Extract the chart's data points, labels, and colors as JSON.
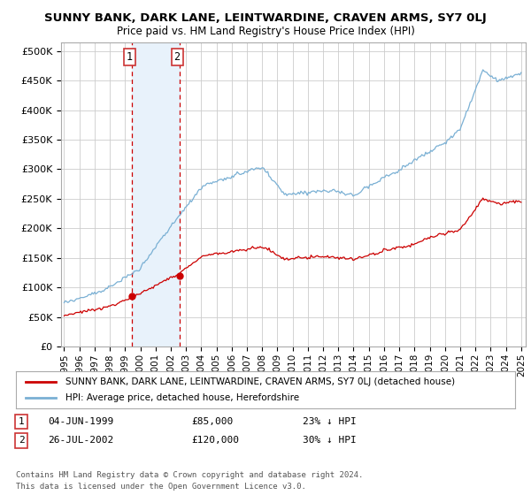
{
  "title": "SUNNY BANK, DARK LANE, LEINTWARDINE, CRAVEN ARMS, SY7 0LJ",
  "subtitle": "Price paid vs. HM Land Registry's House Price Index (HPI)",
  "ylabel_ticks": [
    "£0",
    "£50K",
    "£100K",
    "£150K",
    "£200K",
    "£250K",
    "£300K",
    "£350K",
    "£400K",
    "£450K",
    "£500K"
  ],
  "ytick_values": [
    0,
    50000,
    100000,
    150000,
    200000,
    250000,
    300000,
    350000,
    400000,
    450000,
    500000
  ],
  "ylim": [
    0,
    515000
  ],
  "legend_label_red": "SUNNY BANK, DARK LANE, LEINTWARDINE, CRAVEN ARMS, SY7 0LJ (detached house)",
  "legend_label_blue": "HPI: Average price, detached house, Herefordshire",
  "transaction1_date": "04-JUN-1999",
  "transaction1_price": 85000,
  "transaction1_label": "23% ↓ HPI",
  "transaction2_date": "26-JUL-2002",
  "transaction2_price": 120000,
  "transaction2_label": "30% ↓ HPI",
  "footnote1": "Contains HM Land Registry data © Crown copyright and database right 2024.",
  "footnote2": "This data is licensed under the Open Government Licence v3.0.",
  "red_color": "#cc0000",
  "blue_color": "#7ab0d4",
  "shading_color": "#e8f2fb",
  "grid_color": "#cccccc",
  "bg_color": "#ffffff"
}
